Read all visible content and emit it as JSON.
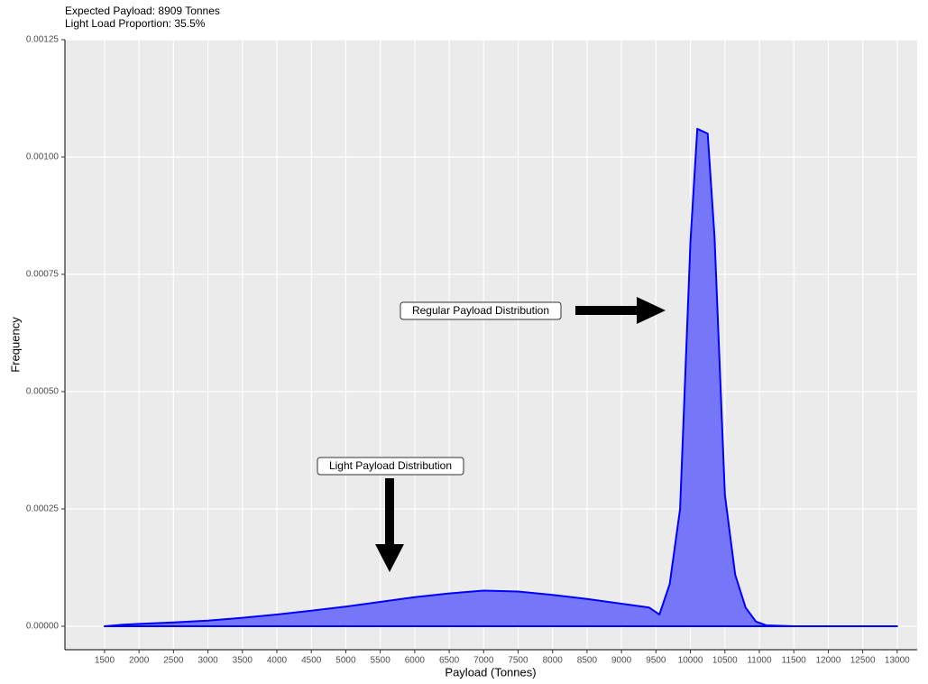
{
  "chart_data": {
    "type": "area",
    "subtitle": [
      "Expected Payload: 8909 Tonnes",
      "Light Load Proportion: 35.5%"
    ],
    "xlabel": "Payload (Tonnes)",
    "ylabel": "Frequency",
    "x": [
      1500,
      1750,
      2000,
      2500,
      3000,
      3500,
      4000,
      4500,
      5000,
      5500,
      6000,
      6500,
      7000,
      7500,
      8000,
      8500,
      9000,
      9400,
      9550,
      9700,
      9850,
      10000,
      10100,
      10250,
      10350,
      10500,
      10650,
      10800,
      10950,
      11100,
      11500,
      13000
    ],
    "values": [
      0,
      3e-06,
      5e-06,
      8e-06,
      1.2e-05,
      1.8e-05,
      2.5e-05,
      3.3e-05,
      4.2e-05,
      5.2e-05,
      6.2e-05,
      7e-05,
      7.6e-05,
      7.4e-05,
      6.7e-05,
      5.8e-05,
      4.8e-05,
      4e-05,
      2.5e-05,
      9e-05,
      0.00025,
      0.00082,
      0.00106,
      0.00105,
      0.00083,
      0.00028,
      0.00011,
      4e-05,
      1e-05,
      2e-06,
      0,
      0
    ],
    "color": "#0000ff",
    "fill": "#7676f8",
    "xlim": [
      925,
      13290
    ],
    "ylim": [
      -5e-05,
      0.00125
    ],
    "xticks": [
      1500,
      2000,
      2500,
      3000,
      3500,
      4000,
      4500,
      5000,
      5500,
      6000,
      6500,
      7000,
      7500,
      8000,
      8500,
      9000,
      9500,
      10000,
      10500,
      11000,
      11500,
      12000,
      12500,
      13000
    ],
    "yticks": [
      {
        "value": 0,
        "label": "0.00000"
      },
      {
        "value": 0.00025,
        "label": "0.00025"
      },
      {
        "value": 0.0005,
        "label": "0.00050"
      },
      {
        "value": 0.00075,
        "label": "0.00075"
      },
      {
        "value": 0.001,
        "label": "0.00100"
      },
      {
        "value": 0.00125,
        "label": "0.00125"
      }
    ],
    "grid": true,
    "annotations": [
      "Regular Payload Distribution",
      "Light Payload Distribution"
    ]
  }
}
